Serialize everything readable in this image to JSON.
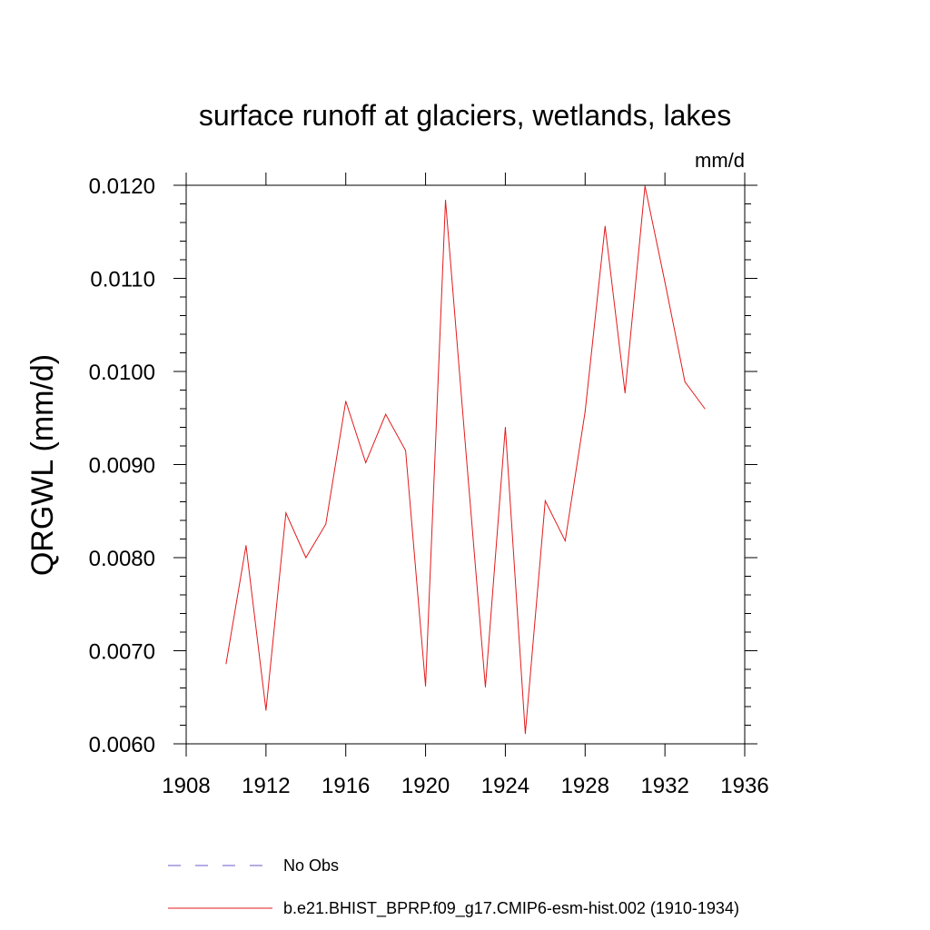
{
  "chart_data": {
    "type": "line",
    "title": "surface runoff at glaciers, wetlands, lakes",
    "units": "mm/d",
    "xlabel": "",
    "ylabel": "QRGWL  (mm/d)",
    "xlim": [
      1908,
      1936
    ],
    "ylim": [
      0.006,
      0.012
    ],
    "xticks": [
      1908,
      1912,
      1916,
      1920,
      1924,
      1928,
      1932,
      1936
    ],
    "xtick_labels": [
      "1908",
      "1912",
      "1916",
      "1920",
      "1924",
      "1928",
      "1932",
      "1936"
    ],
    "yticks": [
      0.006,
      0.007,
      0.008,
      0.009,
      0.01,
      0.011,
      0.012
    ],
    "ytick_labels": [
      "0.0060",
      "0.0070",
      "0.0080",
      "0.0090",
      "0.0100",
      "0.0110",
      "0.0120"
    ],
    "grid": false,
    "legend_position": "bottom",
    "series": [
      {
        "name": "b.e21.BHIST_BPRP.f09_g17.CMIP6-esm-hist.002 (1910-1934)",
        "color": "#e31a1c",
        "style": "solid",
        "x": [
          1910,
          1911,
          1912,
          1913,
          1914,
          1915,
          1916,
          1917,
          1918,
          1919,
          1920,
          1921,
          1922,
          1923,
          1924,
          1925,
          1926,
          1927,
          1928,
          1929,
          1930,
          1931,
          1932,
          1933,
          1934
        ],
        "values": [
          0.00686,
          0.00813,
          0.00636,
          0.00848,
          0.008,
          0.00836,
          0.00968,
          0.00902,
          0.00954,
          0.00915,
          0.00662,
          0.01184,
          0.0092,
          0.00661,
          0.0094,
          0.00611,
          0.00861,
          0.00818,
          0.00957,
          0.01156,
          0.00977,
          0.01199,
          0.01096,
          0.00989,
          0.0096
        ]
      }
    ],
    "legend": [
      {
        "label": "No Obs",
        "color": "#6a5acd",
        "style": "dashed"
      },
      {
        "label": "b.e21.BHIST_BPRP.f09_g17.CMIP6-esm-hist.002 (1910-1934)",
        "color": "#e31a1c",
        "style": "solid"
      }
    ]
  }
}
